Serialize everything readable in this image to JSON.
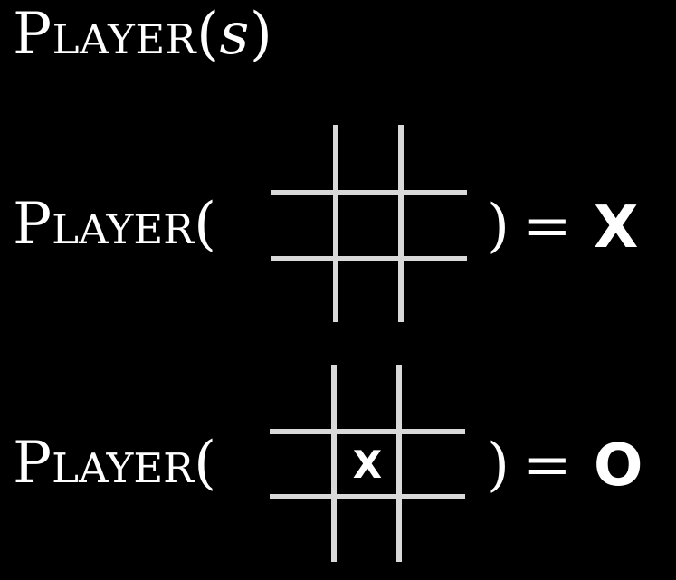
{
  "title": {
    "function_name": "Player",
    "open_paren": "(",
    "argument": "s",
    "close_paren": ")"
  },
  "examples": [
    {
      "function_name": "Player",
      "open_paren": "(",
      "close_paren": ")",
      "equals": "=",
      "board_marks": [
        "",
        "",
        "",
        "",
        "",
        "",
        "",
        "",
        ""
      ],
      "result": "X"
    },
    {
      "function_name": "Player",
      "open_paren": "(",
      "close_paren": ")",
      "equals": "=",
      "board_marks": [
        "",
        "",
        "",
        "",
        "X",
        "",
        "",
        "",
        ""
      ],
      "result": "O"
    }
  ],
  "colors": {
    "background": "#000000",
    "text": "#ffffff",
    "grid_line": "#d9d9d9"
  }
}
